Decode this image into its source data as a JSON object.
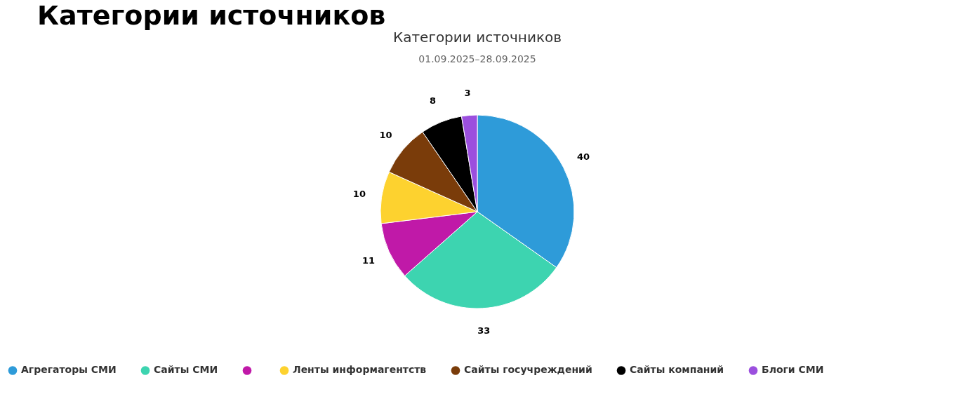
{
  "chart_data": {
    "type": "pie",
    "title": "Категории источников",
    "subtitle": "01.09.2025–28.09.2025",
    "annotations": [
      "Категории источников"
    ],
    "categories": [
      "Агрегаторы СМИ",
      "Сайты СМИ",
      null,
      "Ленты информагентств",
      "Сайты госучреждений",
      "Сайты компаний",
      "Блоги СМИ"
    ],
    "values": [
      40,
      33,
      11,
      10,
      10,
      8,
      3
    ],
    "colors": [
      "#2e9bd9",
      "#3dd4b0",
      "#c019a8",
      "#fdd22f",
      "#7a3c0a",
      "#000000",
      "#9b4fde"
    ],
    "data_labels": true,
    "legend": "bottom"
  }
}
